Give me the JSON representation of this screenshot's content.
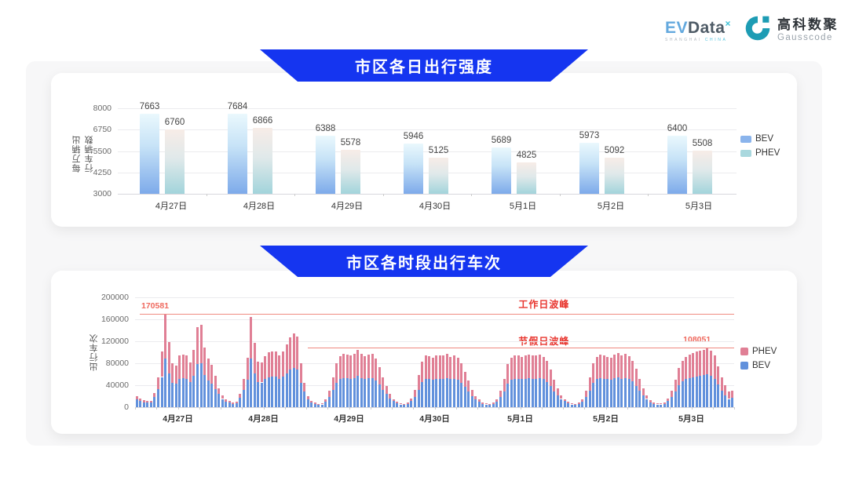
{
  "header": {
    "evdata_logo": {
      "ev": "EV",
      "data": "Data",
      "sup": "×",
      "subtitle_left": "SHANGHAI ",
      "subtitle_right": "CHINA"
    },
    "gausscode_logo": {
      "cn": "高科数聚",
      "en": "Gausscode"
    }
  },
  "colors": {
    "banner_blue": "#1535f0",
    "bev_bar_top": "#eaf8fd",
    "bev_bar_bottom": "#7daaea",
    "phev_bar_top": "#f7ece7",
    "phev_bar_bottom": "#a2d4db",
    "stacked_bev": "#6291dc",
    "stacked_phev": "#e07f95",
    "ref_line": "#ef8a80",
    "ref_text": "#e8352e"
  },
  "chart_data": [
    {
      "type": "bar",
      "title": "市区各日出行强度",
      "ylabel": "每万辆出行车辆数",
      "ylim": [
        3000,
        8000
      ],
      "yticks": [
        3000,
        4250,
        5500,
        6750,
        8000
      ],
      "grid": true,
      "legend_position": "right",
      "categories": [
        "4月27日",
        "4月28日",
        "4月29日",
        "4月30日",
        "5月1日",
        "5月2日",
        "5月3日"
      ],
      "series": [
        {
          "name": "BEV",
          "values": [
            7663,
            7684,
            6388,
            5946,
            5689,
            5973,
            6400
          ]
        },
        {
          "name": "PHEV",
          "values": [
            6760,
            6866,
            5578,
            5125,
            4825,
            5092,
            5508
          ]
        }
      ]
    },
    {
      "type": "bar",
      "stacked": true,
      "title": "市区各时段出行车次",
      "ylabel": "出行车次",
      "ylim": [
        0,
        200000
      ],
      "yticks": [
        0,
        40000,
        80000,
        120000,
        160000,
        200000
      ],
      "grid": true,
      "legend_position": "right",
      "legend": [
        "PHEV",
        "BEV"
      ],
      "categories": [
        "4月27日",
        "4月28日",
        "4月29日",
        "4月30日",
        "5月1日",
        "5月2日",
        "5月3日"
      ],
      "days": [
        {
          "label": "4月27日",
          "bev": [
            14000,
            11000,
            9000,
            8000,
            9000,
            18000,
            33000,
            55000,
            89000,
            62000,
            45000,
            43000,
            52000,
            53000,
            52000,
            46000,
            57000,
            78000,
            80000,
            58000,
            48000,
            43000,
            33000,
            24000
          ],
          "phev": [
            6000,
            5000,
            4000,
            3000,
            3000,
            8000,
            22000,
            46000,
            81581,
            56000,
            35000,
            33000,
            42000,
            43000,
            43000,
            36000,
            48000,
            68000,
            70000,
            50000,
            40000,
            34000,
            24000,
            11000
          ]
        },
        {
          "label": "4月28日",
          "bev": [
            15000,
            10000,
            8000,
            6000,
            7000,
            17000,
            31000,
            50000,
            88000,
            62000,
            46000,
            45000,
            51000,
            55000,
            56000,
            56000,
            52000,
            56000,
            62000,
            68000,
            72000,
            69000,
            45000,
            29000
          ],
          "phev": [
            7000,
            5000,
            3000,
            3000,
            3000,
            7000,
            21000,
            40000,
            76000,
            55000,
            37000,
            37000,
            42000,
            45000,
            45000,
            46000,
            43000,
            46000,
            53000,
            59000,
            62000,
            59000,
            35000,
            16000
          ]
        },
        {
          "label": "4月29日",
          "bev": [
            14000,
            8000,
            6000,
            4000,
            5000,
            10000,
            18000,
            31000,
            44000,
            51000,
            53000,
            53000,
            52000,
            53000,
            57000,
            53000,
            51000,
            53000,
            53000,
            49000,
            41000,
            32000,
            24000,
            16000
          ],
          "phev": [
            6000,
            4000,
            2000,
            2000,
            2000,
            4000,
            12000,
            24000,
            36000,
            42000,
            44000,
            43000,
            43000,
            44000,
            47000,
            44000,
            42000,
            43000,
            44000,
            40000,
            32000,
            23000,
            14000,
            8000
          ]
        },
        {
          "label": "4月30日",
          "bev": [
            11000,
            7000,
            5000,
            4000,
            6000,
            11000,
            19000,
            32000,
            46000,
            52000,
            51000,
            50000,
            52000,
            52000,
            52000,
            53000,
            51000,
            52000,
            50000,
            44000,
            37000,
            28000,
            20000,
            14000
          ],
          "phev": [
            4000,
            3000,
            2000,
            2000,
            2000,
            5000,
            13000,
            26000,
            37000,
            43000,
            42000,
            40000,
            42000,
            43000,
            43000,
            44000,
            41000,
            43000,
            40000,
            36000,
            28000,
            20000,
            12000,
            6000
          ]
        },
        {
          "label": "5月1日",
          "bev": [
            10000,
            6000,
            5000,
            4000,
            6000,
            10000,
            18000,
            29000,
            43000,
            50000,
            52000,
            52000,
            51000,
            52000,
            53000,
            52000,
            52000,
            53000,
            51000,
            46000,
            38000,
            29000,
            21000,
            15000
          ],
          "phev": [
            4000,
            3000,
            2000,
            2000,
            2000,
            5000,
            12000,
            23000,
            35000,
            40000,
            43000,
            42000,
            41000,
            42000,
            43000,
            43000,
            42000,
            43000,
            41000,
            38000,
            30000,
            21000,
            13000,
            6000
          ]
        },
        {
          "label": "5月2日",
          "bev": [
            11000,
            7000,
            5000,
            4000,
            6000,
            10000,
            18000,
            30000,
            44000,
            51000,
            53000,
            52000,
            51000,
            50000,
            53000,
            54000,
            52000,
            53000,
            51000,
            47000,
            39000,
            30000,
            22000,
            15000
          ],
          "phev": [
            4000,
            3000,
            2000,
            2000,
            2000,
            5000,
            12000,
            24000,
            36000,
            41000,
            43000,
            43000,
            41000,
            40000,
            43000,
            44000,
            43000,
            44000,
            42000,
            38000,
            31000,
            22000,
            13000,
            7000
          ]
        },
        {
          "label": "5月3日",
          "bev": [
            9000,
            6000,
            5000,
            5000,
            6000,
            11000,
            18000,
            28000,
            40000,
            47000,
            51000,
            53000,
            54000,
            56000,
            57000,
            58000,
            60000,
            57000,
            52000,
            41000,
            30000,
            22000,
            15000,
            17000
          ],
          "phev": [
            4000,
            3000,
            2000,
            2000,
            3000,
            5000,
            12000,
            22000,
            32000,
            38000,
            41000,
            43000,
            45000,
            45000,
            46000,
            47000,
            48051,
            46000,
            43000,
            34000,
            25000,
            18000,
            13000,
            13000
          ]
        }
      ],
      "annotations": {
        "workday_peak": {
          "label": "工作日波峰",
          "value": 170581,
          "value_label": "170581"
        },
        "holiday_peak": {
          "label": "节假日波峰",
          "value": 108051,
          "value_label": "108051"
        }
      }
    }
  ]
}
